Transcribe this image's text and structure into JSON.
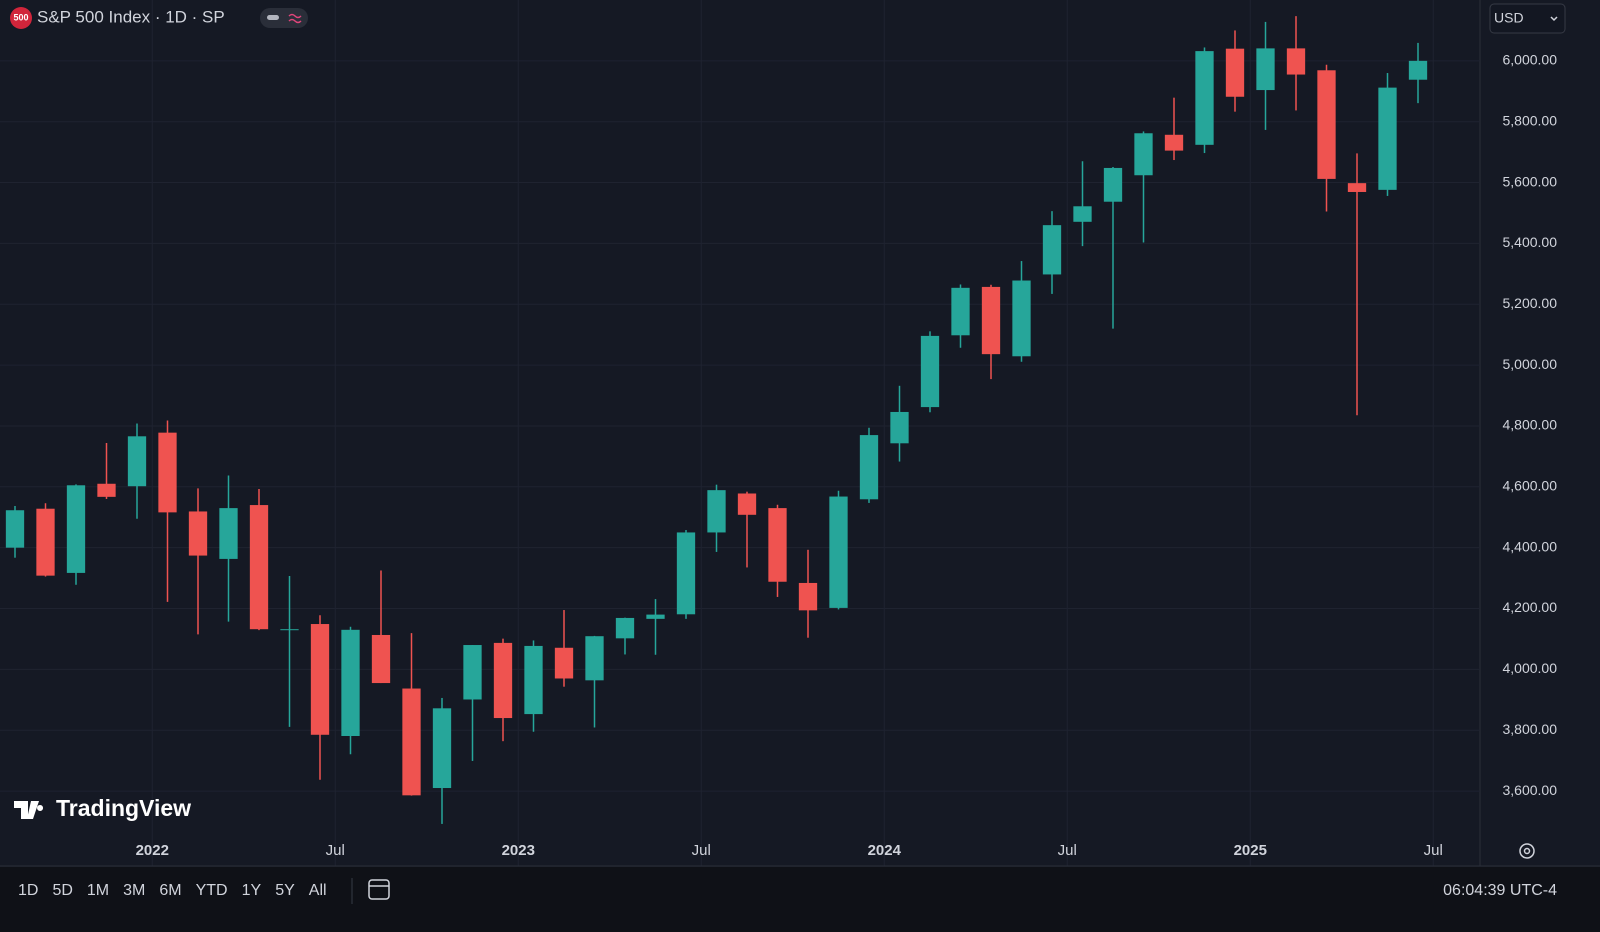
{
  "chart_data": {
    "type": "candlestick",
    "title": "S&P 500 Index · 1D · SP",
    "logo": "500",
    "currency": "USD",
    "watermark": "TradingView",
    "up_color": "#26a69a",
    "down_color": "#ef5350",
    "grid": true,
    "x": [
      "2021-08",
      "2021-09",
      "2021-10",
      "2021-11",
      "2021-12",
      "2022-01",
      "2022-02",
      "2022-03",
      "2022-04",
      "2022-05",
      "2022-06",
      "2022-07",
      "2022-08",
      "2022-09",
      "2022-10",
      "2022-11",
      "2022-12",
      "2023-01",
      "2023-02",
      "2023-03",
      "2023-04",
      "2023-05",
      "2023-06",
      "2023-07",
      "2023-08",
      "2023-09",
      "2023-10",
      "2023-11",
      "2023-12",
      "2024-01",
      "2024-02",
      "2024-03",
      "2024-04",
      "2024-05",
      "2024-06",
      "2024-07",
      "2024-08",
      "2024-09",
      "2024-10",
      "2024-11",
      "2024-12",
      "2025-01",
      "2025-02",
      "2025-03",
      "2025-04",
      "2025-05",
      "2025-06"
    ],
    "open": [
      4400,
      4528,
      4317,
      4610,
      4602,
      4778,
      4519,
      4363,
      4540,
      4131,
      4149,
      3781,
      4113,
      3937,
      3610,
      3901,
      4087,
      3853,
      4071,
      3964,
      4102,
      4166,
      4181,
      4450,
      4578,
      4530,
      4284,
      4202,
      4559,
      4743,
      4862,
      5098,
      5257,
      5029,
      5298,
      5471,
      5537,
      5624,
      5757,
      5724,
      6040,
      5904,
      6041,
      5969,
      5598,
      5576,
      5938
    ],
    "high": [
      4537,
      4546,
      4608,
      4744,
      4808,
      4818,
      4595,
      4637,
      4593,
      4307,
      4178,
      4140,
      4325,
      4119,
      3906,
      4080,
      4101,
      4095,
      4195,
      4110,
      4170,
      4231,
      4458,
      4607,
      4584,
      4541,
      4393,
      4587,
      4794,
      4932,
      5111,
      5265,
      5264,
      5342,
      5506,
      5670,
      5651,
      5768,
      5879,
      6044,
      6100,
      6128,
      6147,
      5987,
      5696,
      5960,
      6059
    ],
    "low": [
      4367,
      4305,
      4278,
      4560,
      4495,
      4222,
      4115,
      4157,
      4129,
      3811,
      3637,
      3721,
      3955,
      3585,
      3492,
      3699,
      3764,
      3795,
      3943,
      3809,
      4049,
      4048,
      4166,
      4386,
      4335,
      4238,
      4104,
      4197,
      4547,
      4683,
      4845,
      5057,
      4954,
      5011,
      5234,
      5391,
      5120,
      5403,
      5674,
      5697,
      5833,
      5773,
      5837,
      5505,
      4835,
      5556,
      5861
    ],
    "close": [
      4523,
      4308,
      4605,
      4567,
      4766,
      4516,
      4374,
      4530,
      4132,
      4132,
      3785,
      4130,
      3955,
      3586,
      3872,
      4080,
      3840,
      4077,
      3970,
      4109,
      4169,
      4180,
      4450,
      4589,
      4508,
      4288,
      4194,
      4568,
      4770,
      4846,
      5096,
      5254,
      5036,
      5278,
      5460,
      5522,
      5648,
      5762,
      5705,
      6032,
      5882,
      6041,
      5955,
      5612,
      5569,
      5912,
      6000
    ],
    "ylim": [
      3357,
      6200
    ],
    "yticks": [
      {
        "value": 3600,
        "label": "3,600.00"
      },
      {
        "value": 3800,
        "label": "3,800.00"
      },
      {
        "value": 4000,
        "label": "4,000.00"
      },
      {
        "value": 4200,
        "label": "4,200.00"
      },
      {
        "value": 4400,
        "label": "4,400.00"
      },
      {
        "value": 4600,
        "label": "4,600.00"
      },
      {
        "value": 4800,
        "label": "4,800.00"
      },
      {
        "value": 5000,
        "label": "5,000.00"
      },
      {
        "value": 5200,
        "label": "5,200.00"
      },
      {
        "value": 5400,
        "label": "5,400.00"
      },
      {
        "value": 5600,
        "label": "5,600.00"
      },
      {
        "value": 5800,
        "label": "5,800.00"
      },
      {
        "value": 6000,
        "label": "6,000.00"
      }
    ],
    "xticks": [
      {
        "value": "2022-01",
        "label": "2022"
      },
      {
        "value": "2022-07",
        "label": "Jul"
      },
      {
        "value": "2023-01",
        "label": "2023"
      },
      {
        "value": "2023-07",
        "label": "Jul"
      },
      {
        "value": "2024-01",
        "label": "2024"
      },
      {
        "value": "2024-07",
        "label": "Jul"
      },
      {
        "value": "2025-01",
        "label": "2025"
      },
      {
        "value": "2025-07",
        "label": "Jul"
      }
    ]
  },
  "toolbar": {
    "ranges": [
      "1D",
      "5D",
      "1M",
      "3M",
      "6M",
      "YTD",
      "1Y",
      "5Y",
      "All"
    ],
    "time": "06:04:39 UTC-4"
  }
}
